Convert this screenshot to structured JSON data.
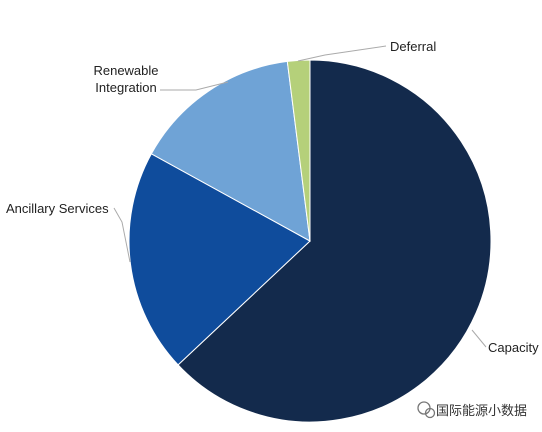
{
  "chart_data": {
    "type": "pie",
    "categories": [
      "Capacity",
      "Ancillary Services",
      "Renewable Integration",
      "Deferral"
    ],
    "values": [
      63,
      20,
      15,
      2
    ],
    "colors": [
      "#132a4c",
      "#0f4c9c",
      "#6fa3d6",
      "#b5d07a"
    ]
  },
  "watermark": "国际能源小数据"
}
